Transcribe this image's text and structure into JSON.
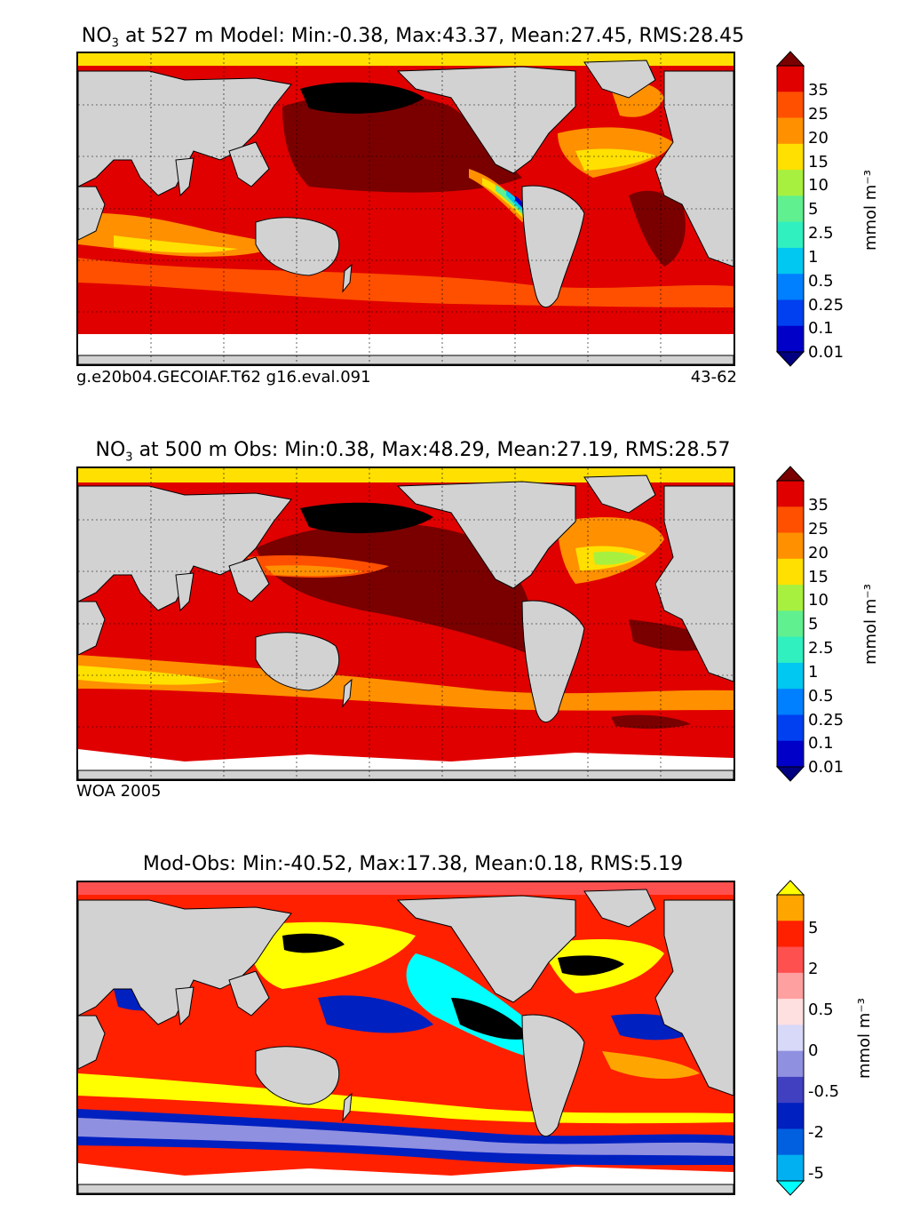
{
  "panels": [
    {
      "title_pre": "NO",
      "title_sub": "3",
      "title_post": " at 527 m Model: Min:-0.38, Max:43.37, Mean:27.45, RMS:28.45",
      "footer_left": "g.e20b04.GECOIAF.T62 g16.eval.091",
      "footer_right": "43-62"
    },
    {
      "title_pre": "NO",
      "title_sub": "3",
      "title_post": " at 500 m Obs: Min:0.38, Max:48.29, Mean:27.19, RMS:28.57",
      "footer_left": "WOA 2005",
      "footer_right": ""
    },
    {
      "title_full": "Mod-Obs: Min:-40.52, Max:17.38, Mean:0.18, RMS:5.19"
    }
  ],
  "colorbar_no3": {
    "labels": [
      "35",
      "25",
      "20",
      "15",
      "10",
      "5",
      "2.5",
      "1",
      "0.5",
      "0.25",
      "0.1",
      "0.01"
    ],
    "colors": [
      "#7a0000",
      "#e00000",
      "#ff5000",
      "#ff9000",
      "#ffe000",
      "#a8f040",
      "#60f090",
      "#30f0c0",
      "#00c8f0",
      "#0080ff",
      "#0040f0",
      "#0000c8",
      "#000080"
    ],
    "units": "mmol m⁻³"
  },
  "colorbar_diff": {
    "labels": [
      "5",
      "2",
      "0.5",
      "0",
      "-0.5",
      "-2",
      "-5"
    ],
    "colors": [
      "#ffff00",
      "#ffa500",
      "#ff2000",
      "#ff5050",
      "#ffa0a0",
      "#ffe0e0",
      "#d8d8f8",
      "#9090e0",
      "#4040c0",
      "#0020c0",
      "#0060e0",
      "#00b0f0",
      "#00ffff"
    ],
    "units": "mmol m⁻³"
  }
}
